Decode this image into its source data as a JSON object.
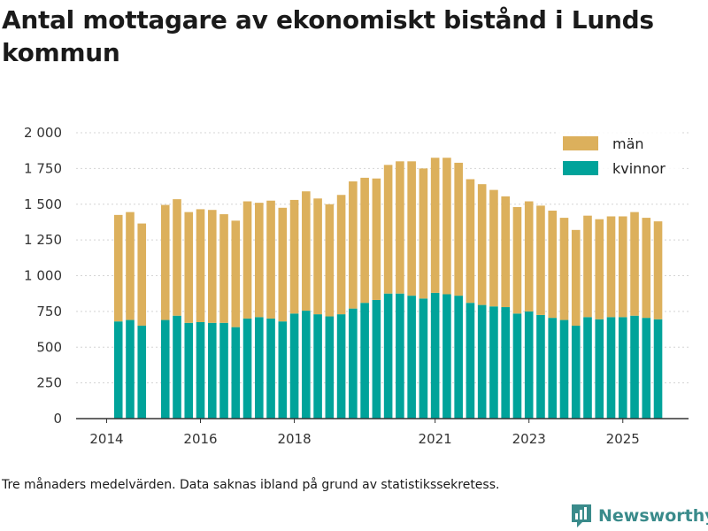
{
  "title": "Antal mottagare av ekonomiskt bistånd i Lunds kommun",
  "note": "Tre månaders medelvärden. Data saknas ibland på grund av statistikssekretess.",
  "brand": {
    "name": "Newsworthy",
    "icon": "newsworthy-logo-icon",
    "color": "#3a8b8b"
  },
  "chart_data": {
    "type": "bar",
    "stacked": true,
    "x_start": 2014.0,
    "x_step": 0.25,
    "x_range": [
      2013.35,
      2026.4
    ],
    "ylim": [
      0,
      2000
    ],
    "y_ticks": [
      0,
      250,
      500,
      750,
      1000,
      1250,
      1500,
      1750,
      2000
    ],
    "y_tick_labels": [
      "0",
      "250",
      "500",
      "750",
      "1 000",
      "1 250",
      "1 500",
      "1 750",
      "2 000"
    ],
    "x_ticks": [
      2014,
      2016,
      2018,
      2021,
      2023,
      2025
    ],
    "x_tick_labels": [
      "2014",
      "2016",
      "2018",
      "2021",
      "2023",
      "2025"
    ],
    "grid": true,
    "legend_position": "top-right",
    "series": [
      {
        "name": "kvinnor",
        "color": "#00a39a",
        "values": [
          null,
          680,
          690,
          650,
          null,
          690,
          720,
          670,
          675,
          670,
          670,
          640,
          700,
          710,
          700,
          680,
          735,
          755,
          730,
          715,
          730,
          770,
          810,
          830,
          875,
          875,
          860,
          840,
          880,
          870,
          860,
          810,
          795,
          785,
          780,
          735,
          750,
          725,
          705,
          690,
          650,
          710,
          695,
          710,
          710,
          720,
          705,
          695
        ]
      },
      {
        "name": "män",
        "color": "#dcb05c",
        "values": [
          null,
          745,
          755,
          715,
          null,
          805,
          815,
          775,
          790,
          790,
          760,
          745,
          820,
          800,
          825,
          795,
          795,
          835,
          810,
          785,
          835,
          890,
          875,
          850,
          900,
          925,
          940,
          910,
          945,
          955,
          930,
          865,
          845,
          815,
          775,
          745,
          770,
          765,
          750,
          715,
          670,
          710,
          700,
          705,
          705,
          725,
          700,
          685
        ]
      }
    ]
  }
}
